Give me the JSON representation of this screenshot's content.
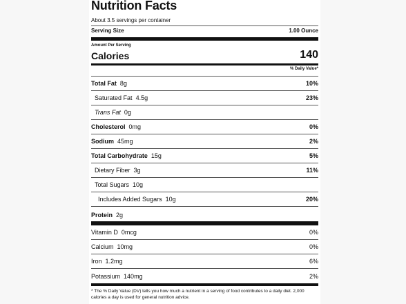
{
  "label": {
    "title": "Nutrition Facts",
    "servings_per_container": "About 3.5 servings per container",
    "serving_size_label": "Serving Size",
    "serving_size_value": "1.00 Ounce",
    "amount_per_serving": "Amount Per Serving",
    "calories_label": "Calories",
    "calories_value": "140",
    "dv_header": "% Daily Value*"
  },
  "nutrients": {
    "total_fat": {
      "name": "Total Fat",
      "amount": "8g",
      "dv": "10%"
    },
    "saturated_fat": {
      "name": "Saturated Fat",
      "amount": "4.5g",
      "dv": "23%"
    },
    "trans_fat": {
      "name_italic": "Trans",
      "name": "Fat",
      "amount": "0g"
    },
    "cholesterol": {
      "name": "Cholesterol",
      "amount": "0mg",
      "dv": "0%"
    },
    "sodium": {
      "name": "Sodium",
      "amount": "45mg",
      "dv": "2%"
    },
    "total_carbohydrate": {
      "name": "Total Carbohydrate",
      "amount": "15g",
      "dv": "5%"
    },
    "dietary_fiber": {
      "name": "Dietary Fiber",
      "amount": "3g",
      "dv": "11%"
    },
    "total_sugars": {
      "name": "Total Sugars",
      "amount": "10g"
    },
    "added_sugars": {
      "name": "Includes Added Sugars",
      "amount": "10g",
      "dv": "20%"
    },
    "protein": {
      "name": "Protein",
      "amount": "2g"
    }
  },
  "vitamins": {
    "vitamin_d": {
      "name": "Vitamin D",
      "amount": "0mcg",
      "dv": "0%"
    },
    "calcium": {
      "name": "Calcium",
      "amount": "10mg",
      "dv": "0%"
    },
    "iron": {
      "name": "Iron",
      "amount": "1.2mg",
      "dv": "6%"
    },
    "potassium": {
      "name": "Potassium",
      "amount": "140mg",
      "dv": "2%"
    }
  },
  "footnote": "* The % Daily Value (DV) tells you how much a nutrient in a serving of food contributes to a daily diet. 2,000 calories a day is used for general nutrition advice.",
  "colors": {
    "background": "#ffffff",
    "gutter": "#f7f7f7",
    "text": "#111111",
    "rule": "#111111"
  }
}
